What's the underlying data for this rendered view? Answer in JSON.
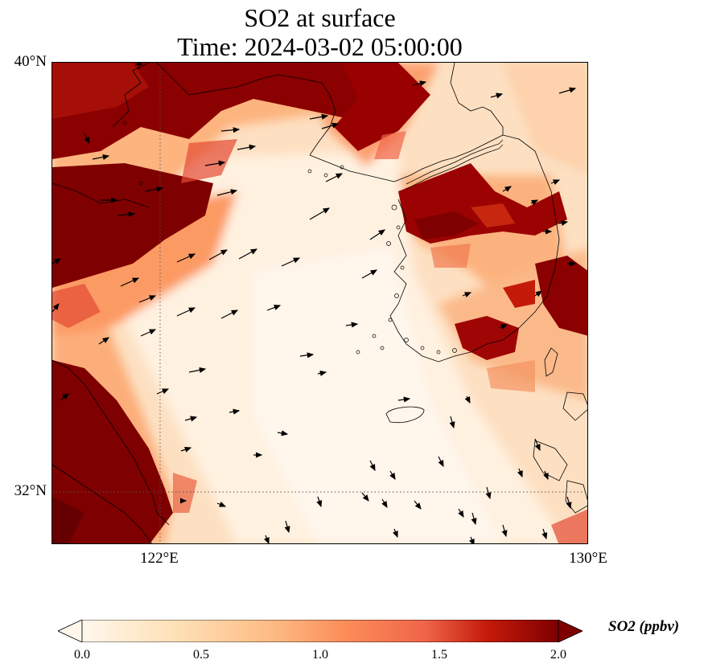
{
  "title": {
    "line1": "SO2 at surface",
    "line2": "Time: 2024-03-02 05:00:00"
  },
  "map": {
    "lat_ticks": [
      "40°N",
      "32°N"
    ],
    "lon_ticks": [
      "122°E",
      "130°E"
    ],
    "lat_range": [
      31,
      40
    ],
    "lon_range": [
      120,
      130
    ],
    "gridlines": "dotted, at 122°E and 32°N",
    "field": "SO2 surface concentration (ppbv) with surface wind vectors",
    "colormap": "OrRd"
  },
  "colorbar": {
    "label": "SO2 (ppbv)",
    "ticks": [
      "0.0",
      "0.5",
      "1.0",
      "1.5",
      "2.0"
    ],
    "min": 0.0,
    "max": 2.0,
    "extend": "both",
    "colors": {
      "low": "#fff7ec",
      "mid": "#fc8d59",
      "high": "#7f0000"
    }
  }
}
